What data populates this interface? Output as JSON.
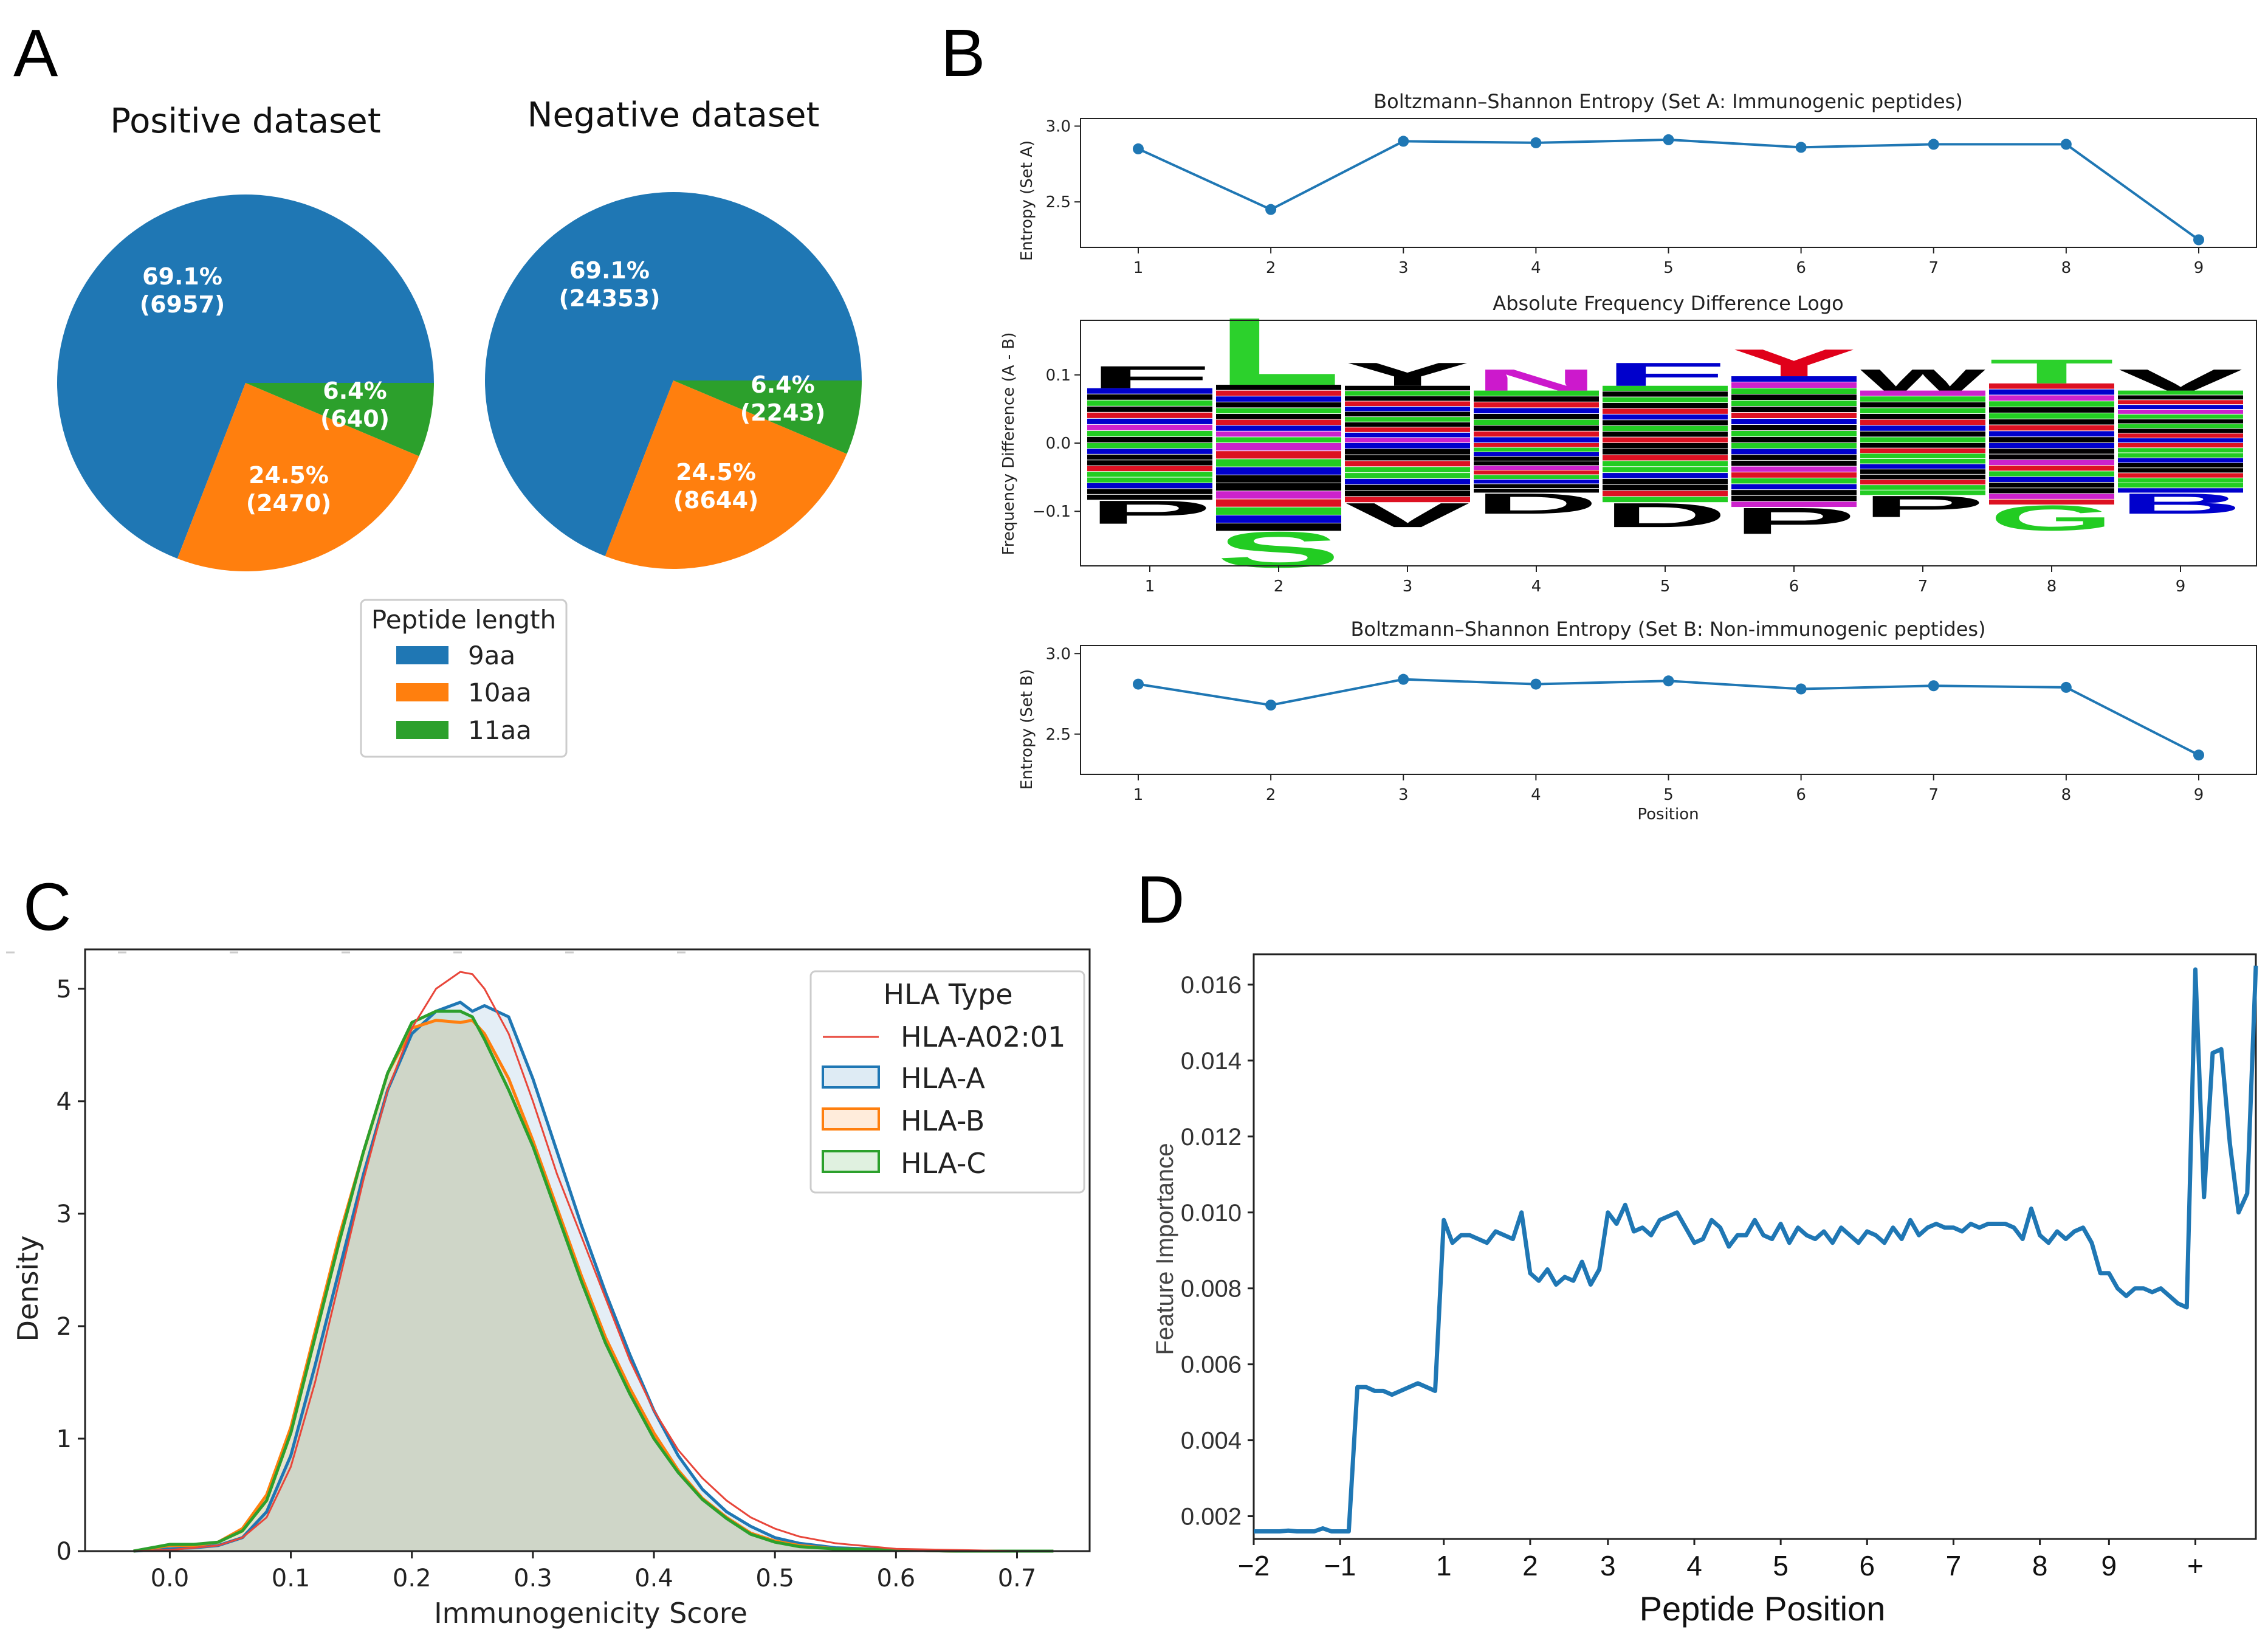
{
  "panels": {
    "a": "A",
    "b": "B",
    "c": "C",
    "d": "D"
  },
  "colors": {
    "blue": "#1f77b4",
    "orange": "#ff7f0e",
    "green": "#2ca02c",
    "red": "#e8463a"
  },
  "chart_data": [
    {
      "id": "pie-positive",
      "type": "pie",
      "title": "Positive dataset",
      "categories": [
        "9aa",
        "10aa",
        "11aa"
      ],
      "values": [
        6957,
        2470,
        640
      ],
      "labels": [
        [
          "69.1%",
          "(6957)"
        ],
        [
          "24.5%",
          "(2470)"
        ],
        [
          "6.4%",
          "(640)"
        ]
      ]
    },
    {
      "id": "pie-negative",
      "type": "pie",
      "title": "Negative dataset",
      "categories": [
        "9aa",
        "10aa",
        "11aa"
      ],
      "values": [
        24353,
        8644,
        2243
      ],
      "labels": [
        [
          "69.1%",
          "(24353)"
        ],
        [
          "24.5%",
          "(8644)"
        ],
        [
          "6.4%",
          "(2243)"
        ]
      ]
    },
    {
      "id": "pie-legend",
      "type": "legend",
      "title": "Peptide length",
      "entries": [
        "9aa",
        "10aa",
        "11aa"
      ]
    },
    {
      "id": "entropy-a",
      "type": "line",
      "title": "Boltzmann–Shannon Entropy (Set A: Immunogenic peptides)",
      "ylabel": "Entropy (Set A)",
      "x": [
        1,
        2,
        3,
        4,
        5,
        6,
        7,
        8,
        9
      ],
      "values": [
        2.85,
        2.45,
        2.9,
        2.89,
        2.91,
        2.86,
        2.88,
        2.88,
        2.25
      ],
      "ylim": [
        2.2,
        3.05
      ],
      "yticks": [
        "2.5",
        "3.0"
      ]
    },
    {
      "id": "logo",
      "type": "other",
      "title": "Absolute Frequency Difference Logo",
      "ylabel": "Frequency Difference (A - B)",
      "x": [
        1,
        2,
        3,
        4,
        5,
        6,
        7,
        8,
        9
      ],
      "ylim": [
        -0.18,
        0.18
      ],
      "yticks": [
        "0.1",
        "0.0",
        "−0.1"
      ],
      "top_letters": [
        "F",
        "L",
        "Y",
        "N",
        "F",
        "Y",
        "W",
        "T",
        "V"
      ],
      "bottom_letters": [
        "P",
        "S",
        "V",
        "D",
        "D",
        "P",
        "P",
        "G",
        "B"
      ]
    },
    {
      "id": "entropy-b",
      "type": "line",
      "title": "Boltzmann–Shannon Entropy (Set B: Non-immunogenic peptides)",
      "ylabel": "Entropy (Set B)",
      "xlabel": "Position",
      "x": [
        1,
        2,
        3,
        4,
        5,
        6,
        7,
        8,
        9
      ],
      "values": [
        2.81,
        2.68,
        2.84,
        2.81,
        2.83,
        2.78,
        2.8,
        2.79,
        2.37
      ],
      "ylim": [
        2.25,
        3.05
      ],
      "yticks": [
        "2.5",
        "3.0"
      ]
    },
    {
      "id": "density",
      "type": "area",
      "xlabel": "Immunogenicity Score",
      "ylabel": "Density",
      "xlim": [
        -0.07,
        0.76
      ],
      "ylim": [
        0,
        5.35
      ],
      "xticks": [
        "0.0",
        "0.1",
        "0.2",
        "0.3",
        "0.4",
        "0.5",
        "0.6",
        "0.7"
      ],
      "yticks": [
        "0",
        "1",
        "2",
        "3",
        "4",
        "5"
      ],
      "legend_title": "HLA Type",
      "x": [
        -0.03,
        0.0,
        0.02,
        0.04,
        0.06,
        0.08,
        0.1,
        0.12,
        0.14,
        0.16,
        0.18,
        0.2,
        0.22,
        0.24,
        0.25,
        0.26,
        0.28,
        0.3,
        0.32,
        0.34,
        0.36,
        0.38,
        0.4,
        0.42,
        0.44,
        0.46,
        0.48,
        0.5,
        0.52,
        0.55,
        0.6,
        0.65,
        0.7,
        0.73
      ],
      "series": [
        {
          "name": "HLA-A02:01",
          "style": "line",
          "values": [
            0.0,
            0.01,
            0.03,
            0.05,
            0.12,
            0.3,
            0.75,
            1.5,
            2.4,
            3.3,
            4.1,
            4.65,
            5.0,
            5.15,
            5.13,
            5.0,
            4.6,
            4.0,
            3.35,
            2.8,
            2.25,
            1.7,
            1.25,
            0.9,
            0.65,
            0.45,
            0.3,
            0.2,
            0.13,
            0.07,
            0.02,
            0.01,
            0.0,
            0.0
          ]
        },
        {
          "name": "HLA-A",
          "style": "fill",
          "values": [
            0.0,
            0.02,
            0.03,
            0.05,
            0.12,
            0.35,
            0.85,
            1.65,
            2.5,
            3.35,
            4.1,
            4.6,
            4.8,
            4.88,
            4.8,
            4.85,
            4.75,
            4.2,
            3.55,
            2.9,
            2.3,
            1.75,
            1.25,
            0.85,
            0.55,
            0.35,
            0.22,
            0.12,
            0.07,
            0.03,
            0.01,
            0.0,
            0.0,
            0.0
          ]
        },
        {
          "name": "HLA-B",
          "style": "fill",
          "values": [
            0.0,
            0.05,
            0.05,
            0.08,
            0.2,
            0.5,
            1.1,
            1.95,
            2.8,
            3.55,
            4.25,
            4.65,
            4.72,
            4.7,
            4.72,
            4.6,
            4.2,
            3.65,
            3.05,
            2.45,
            1.9,
            1.45,
            1.05,
            0.72,
            0.47,
            0.3,
            0.16,
            0.09,
            0.05,
            0.02,
            0.01,
            0.0,
            0.0,
            0.0
          ]
        },
        {
          "name": "HLA-C",
          "style": "fill",
          "values": [
            0.0,
            0.06,
            0.06,
            0.08,
            0.18,
            0.45,
            1.05,
            1.9,
            2.75,
            3.55,
            4.25,
            4.7,
            4.8,
            4.8,
            4.75,
            4.55,
            4.1,
            3.6,
            3.0,
            2.4,
            1.85,
            1.4,
            1.0,
            0.7,
            0.46,
            0.29,
            0.15,
            0.08,
            0.04,
            0.02,
            0.01,
            0.0,
            0.0,
            0.0
          ]
        }
      ]
    },
    {
      "id": "importance",
      "type": "line",
      "xlabel": "Peptide Position",
      "ylabel": "Feature Importance",
      "ylim": [
        0.0014,
        0.0168
      ],
      "yticks": [
        "0.002",
        "0.004",
        "0.006",
        "0.008",
        "0.010",
        "0.012",
        "0.014",
        "0.016"
      ],
      "xtick_labels": [
        "−2",
        "−1",
        "1",
        "2",
        "3",
        "4",
        "5",
        "6",
        "7",
        "8",
        "9",
        "+"
      ],
      "values": [
        0.0016,
        0.0016,
        0.0016,
        0.0016,
        0.00162,
        0.0016,
        0.0016,
        0.0016,
        0.00168,
        0.0016,
        0.0016,
        0.0016,
        0.0054,
        0.0054,
        0.0053,
        0.0053,
        0.0052,
        0.0053,
        0.0054,
        0.0055,
        0.0054,
        0.0053,
        0.0098,
        0.0092,
        0.0094,
        0.0094,
        0.0093,
        0.0092,
        0.0095,
        0.0094,
        0.0093,
        0.01,
        0.0084,
        0.0082,
        0.0085,
        0.0081,
        0.0083,
        0.0082,
        0.0087,
        0.0081,
        0.0085,
        0.01,
        0.0097,
        0.0102,
        0.0095,
        0.0096,
        0.0094,
        0.0098,
        0.0099,
        0.01,
        0.0096,
        0.0092,
        0.0093,
        0.0098,
        0.0096,
        0.0091,
        0.0094,
        0.0094,
        0.0098,
        0.0094,
        0.0093,
        0.0097,
        0.0092,
        0.0096,
        0.0094,
        0.0093,
        0.0095,
        0.0092,
        0.0096,
        0.0094,
        0.0092,
        0.0095,
        0.0094,
        0.0092,
        0.0096,
        0.0093,
        0.0098,
        0.0094,
        0.0096,
        0.0097,
        0.0096,
        0.0096,
        0.0095,
        0.0097,
        0.0096,
        0.0097,
        0.0097,
        0.0097,
        0.0096,
        0.0093,
        0.0101,
        0.0094,
        0.0092,
        0.0095,
        0.0093,
        0.0095,
        0.0096,
        0.0092,
        0.0084,
        0.0084,
        0.008,
        0.0078,
        0.008,
        0.008,
        0.0079,
        0.008,
        0.0078,
        0.0076,
        0.0075,
        0.0164,
        0.0104,
        0.0142,
        0.0143,
        0.0118,
        0.01,
        0.0105,
        0.0165
      ],
      "xtick_index": [
        0,
        10,
        22,
        32,
        41,
        51,
        61,
        71,
        81,
        91,
        99,
        109
      ]
    }
  ]
}
